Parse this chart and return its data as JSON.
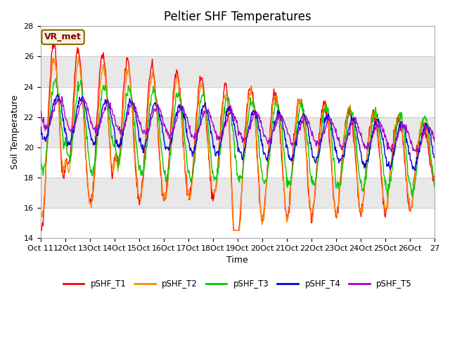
{
  "title": "Peltier SHF Temperatures",
  "xlabel": "Time",
  "ylabel": "Soil Temperature",
  "ylim": [
    14,
    28
  ],
  "xlim": [
    0,
    16
  ],
  "yticks": [
    14,
    16,
    18,
    20,
    22,
    24,
    26,
    28
  ],
  "xtick_labels": [
    "Oct 11",
    "12Oct",
    "13Oct",
    "14Oct",
    "15Oct",
    "16Oct",
    "17Oct",
    "18Oct",
    "19Oct",
    "20Oct",
    "21Oct",
    "22Oct",
    "23Oct",
    "24Oct",
    "25Oct",
    "26Oct",
    "27"
  ],
  "colors": {
    "T1": "#ff0000",
    "T2": "#ff8800",
    "T3": "#00cc00",
    "T4": "#0000dd",
    "T5": "#aa00cc"
  },
  "legend_labels": [
    "pSHF_T1",
    "pSHF_T2",
    "pSHF_T3",
    "pSHF_T4",
    "pSHF_T5"
  ],
  "annotation_text": "VR_met",
  "annotation_fg": "#8b0000",
  "annotation_bg": "#f5f5dc",
  "annotation_edge": "#8b6400",
  "band_colors": [
    "white",
    "#e8e8e8"
  ],
  "title_fontsize": 12,
  "label_fontsize": 9,
  "tick_fontsize": 8
}
